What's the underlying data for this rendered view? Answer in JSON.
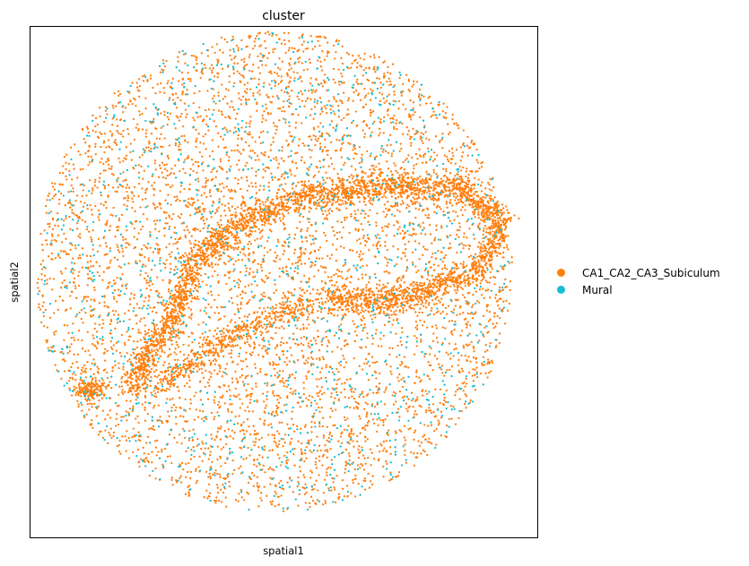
{
  "chart_data": {
    "type": "scatter",
    "title": "cluster",
    "xlabel": "spatial1",
    "ylabel": "spatial2",
    "xticks": [],
    "yticks": [],
    "grid": false,
    "legend_position": "right",
    "series": [
      {
        "name": "CA1_CA2_CA3_Subiculum",
        "color": "#ff7f0e",
        "approx_points": 9000
      },
      {
        "name": "Mural",
        "color": "#17becf",
        "approx_points": 1100
      }
    ],
    "structure": {
      "tissue_region": {
        "shape": "disc",
        "center": [
          0.48,
          0.52
        ],
        "radius": 0.47
      },
      "dense_band_path": [
        [
          0.2,
          0.3
        ],
        [
          0.27,
          0.41
        ],
        [
          0.33,
          0.55
        ],
        [
          0.42,
          0.62
        ],
        [
          0.55,
          0.67
        ],
        [
          0.7,
          0.69
        ],
        [
          0.85,
          0.68
        ],
        [
          0.93,
          0.62
        ],
        [
          0.88,
          0.52
        ],
        [
          0.75,
          0.47
        ],
        [
          0.62,
          0.46
        ],
        [
          0.58,
          0.47
        ]
      ],
      "dense_band_end_blob": [
        0.12,
        0.29
      ],
      "inner_arc_path": [
        [
          0.25,
          0.3
        ],
        [
          0.35,
          0.36
        ],
        [
          0.45,
          0.42
        ],
        [
          0.55,
          0.46
        ]
      ]
    }
  }
}
